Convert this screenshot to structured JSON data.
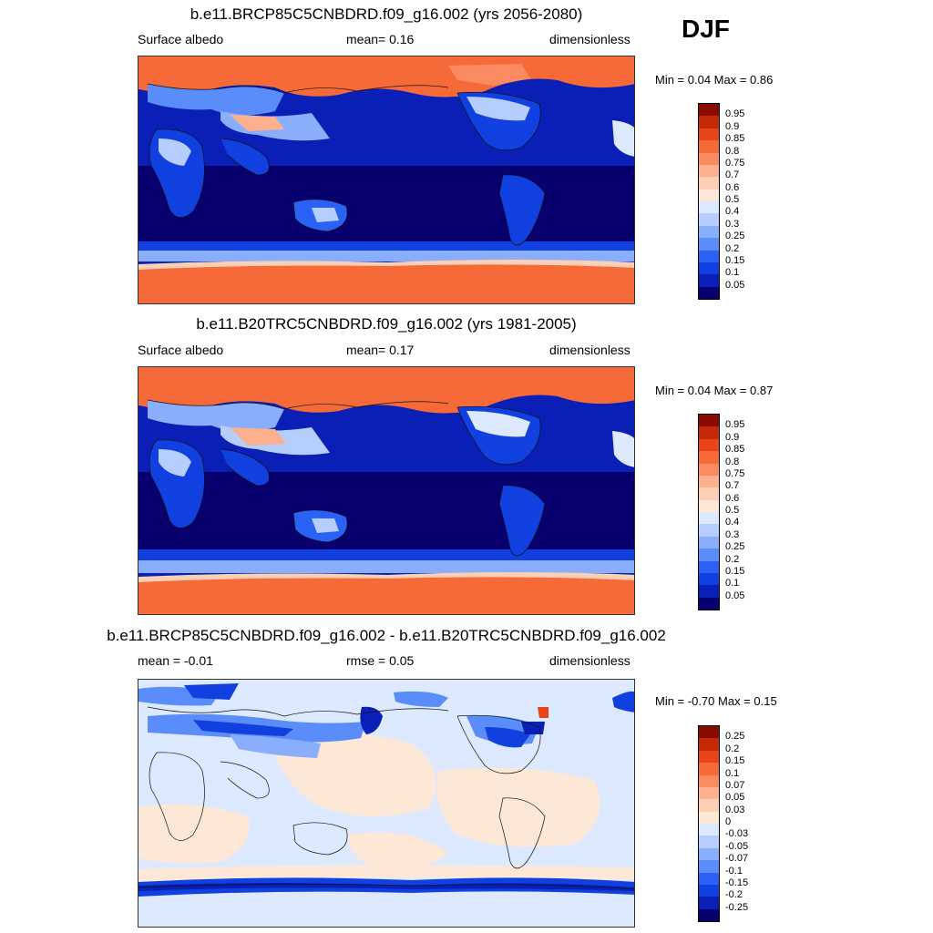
{
  "season": "DJF",
  "palette_colors": [
    "#08006e",
    "#0a1fb5",
    "#1040e0",
    "#2a62f5",
    "#5a8cfa",
    "#88aefc",
    "#b6cefd",
    "#dde9fe",
    "#fde8d8",
    "#fdd0b6",
    "#fcb08e",
    "#fa8a60",
    "#f66a3a",
    "#e84418",
    "#c42a08",
    "#8a0a00"
  ],
  "panels": [
    {
      "title": "b.e11.BRCP85C5CNBDRD.f09_g16.002 (yrs 2056-2080)",
      "left_label": "Surface albedo",
      "stat": "mean=   0.16",
      "units": "dimensionless",
      "minmax": "Min =    0.04 Max =    0.86",
      "colorbar_labels": [
        "0.95",
        "0.9",
        "0.85",
        "0.8",
        "0.75",
        "0.7",
        "0.6",
        "0.5",
        "0.4",
        "0.3",
        "0.25",
        "0.2",
        "0.15",
        "0.1",
        "0.05"
      ],
      "field_min": 0.04,
      "field_max": 0.86,
      "field_mean": 0.16
    },
    {
      "title": "b.e11.B20TRC5CNBDRD.f09_g16.002 (yrs 1981-2005)",
      "left_label": "Surface albedo",
      "stat": "mean=   0.17",
      "units": "dimensionless",
      "minmax": "Min =    0.04 Max =    0.87",
      "colorbar_labels": [
        "0.95",
        "0.9",
        "0.85",
        "0.8",
        "0.75",
        "0.7",
        "0.6",
        "0.5",
        "0.4",
        "0.3",
        "0.25",
        "0.2",
        "0.15",
        "0.1",
        "0.05"
      ],
      "field_min": 0.04,
      "field_max": 0.87,
      "field_mean": 0.17
    },
    {
      "title": "b.e11.BRCP85C5CNBDRD.f09_g16.002 - b.e11.B20TRC5CNBDRD.f09_g16.002",
      "left_label": "mean =  -0.01",
      "stat": "rmse =   0.05",
      "units": "dimensionless",
      "minmax": "Min =  -0.70 Max =    0.15",
      "colorbar_labels": [
        "0.25",
        "0.2",
        "0.15",
        "0.1",
        "0.07",
        "0.05",
        "0.03",
        "0",
        "-0.03",
        "-0.05",
        "-0.07",
        "-0.1",
        "-0.15",
        "-0.2",
        "-0.25"
      ],
      "field_min": -0.7,
      "field_max": 0.15,
      "field_mean": -0.01,
      "field_rmse": 0.05
    }
  ]
}
